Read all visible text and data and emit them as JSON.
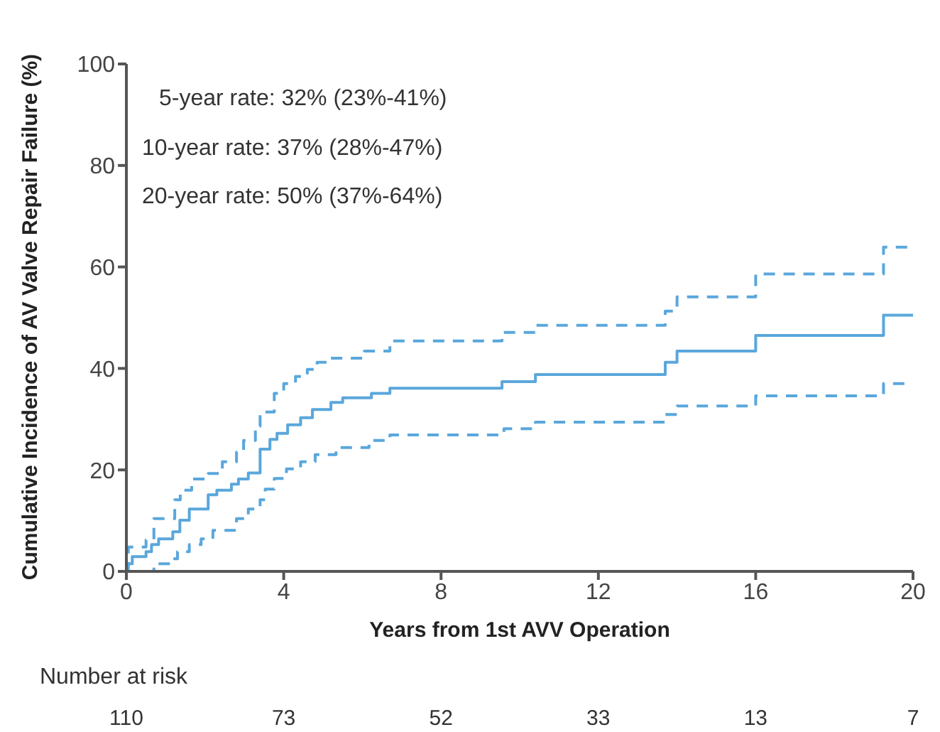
{
  "chart_data": {
    "type": "step",
    "xlabel": "Years from 1st AVV Operation",
    "ylabel": "Cumulative Incidence of AV Valve Repair Failure (%)",
    "xlim": [
      0,
      20
    ],
    "xticks": [
      0,
      4,
      8,
      12,
      16,
      20
    ],
    "ylim": [
      0,
      100
    ],
    "yticks": [
      0,
      20,
      40,
      60,
      80,
      100
    ],
    "grid": false,
    "legend": false,
    "series": [
      {
        "color": "#5aa7dc",
        "line_style": "solid",
        "x": [
          0,
          0.03,
          0.15,
          0.5,
          0.64,
          0.82,
          1.18,
          1.36,
          1.6,
          2.08,
          2.3,
          2.67,
          2.85,
          3.1,
          3.4,
          3.65,
          3.83,
          4.1,
          4.43,
          4.73,
          5.2,
          5.5,
          6.23,
          6.7,
          9.55,
          10.4,
          13.7,
          14.0,
          16.0,
          19.25,
          20
        ],
        "values": [
          0,
          1.5,
          2.9,
          3.9,
          5.3,
          6.4,
          7.8,
          10.1,
          12.3,
          15.1,
          16,
          17.2,
          18.2,
          19.4,
          24.1,
          26,
          27.2,
          28.9,
          30.3,
          31.9,
          33.3,
          34.2,
          35.1,
          36.1,
          37.4,
          38.8,
          41.2,
          43.4,
          46.5,
          50.5,
          50.5
        ]
      },
      {
        "color": "#5aa7dc",
        "line_style": "dashed",
        "x": [
          0,
          0.05,
          0.5,
          0.7,
          1.23,
          1.37,
          1.66,
          2.08,
          2.44,
          2.8,
          2.98,
          3.28,
          3.4,
          3.76,
          4.0,
          4.3,
          4.6,
          4.85,
          5.2,
          6.05,
          6.7,
          9.55,
          10.4,
          13.7,
          14.0,
          16.0,
          19.25,
          20
        ],
        "values": [
          0,
          4.8,
          6.2,
          10.4,
          14.1,
          16,
          18.2,
          19.3,
          21.6,
          23.5,
          25.8,
          28.6,
          31.4,
          35.1,
          37,
          38.4,
          39.8,
          41.2,
          42,
          43.4,
          45.4,
          47.1,
          48.5,
          51.3,
          54.1,
          58.6,
          63.9,
          63.9
        ]
      },
      {
        "color": "#5aa7dc",
        "line_style": "dashed",
        "x": [
          0,
          0.7,
          1.12,
          1.3,
          1.6,
          1.9,
          2.2,
          2.8,
          3.1,
          3.4,
          3.53,
          3.76,
          4.07,
          4.43,
          4.8,
          5.33,
          6.17,
          6.7,
          9.6,
          10.4,
          13.7,
          14.0,
          16.0,
          19.25,
          19.8
        ],
        "values": [
          0,
          1.5,
          2.5,
          3.9,
          5.3,
          6.4,
          8.1,
          10.4,
          12.3,
          14.1,
          16.2,
          18.3,
          20.2,
          21.6,
          23,
          24.4,
          25.8,
          26.9,
          28.1,
          29.4,
          30.9,
          32.6,
          34.6,
          37,
          37
        ]
      }
    ],
    "annotations": [
      "5-year rate: 32% (23%-41%)",
      "10-year rate: 37% (28%-47%)",
      "20-year rate: 50% (37%-64%)",
      "Number at risk",
      "110",
      "73",
      "52",
      "33",
      "13",
      "7"
    ]
  }
}
